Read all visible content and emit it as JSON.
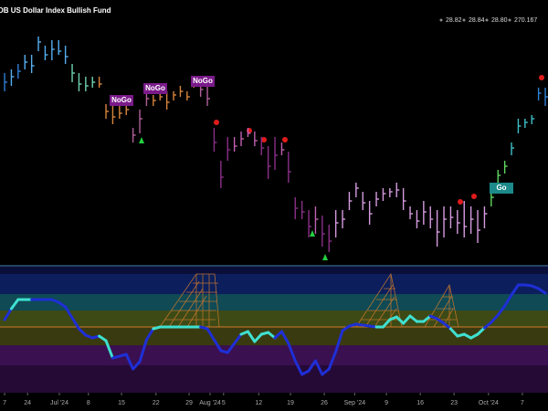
{
  "header": {
    "title": "DB US Dollar Index Bullish Fund",
    "quote": [
      "28.82",
      "28.84",
      "28.80",
      "270.167"
    ]
  },
  "chart_data": [
    {
      "type": "ohlc",
      "ylim": [
        27.55,
        29.0
      ],
      "xlim": [
        -0.68,
        80.4
      ],
      "annotations": [
        "NoGo",
        "NoGo",
        "NoGo",
        "Go"
      ],
      "high": [
        28.6,
        28.62,
        28.65,
        28.7,
        28.7,
        28.8,
        28.75,
        28.78,
        28.78,
        28.75,
        28.65,
        28.6,
        28.58,
        28.58,
        28.58,
        28.43,
        28.45,
        28.43,
        28.45,
        28.3,
        28.4,
        28.5,
        28.48,
        28.5,
        28.5,
        28.5,
        28.53,
        28.5,
        28.58,
        28.55,
        28.53,
        28.3,
        28.12,
        28.25,
        28.25,
        28.28,
        28.3,
        28.28,
        28.25,
        28.2,
        28.25,
        28.22,
        28.17,
        27.92,
        27.9,
        27.85,
        27.87,
        27.82,
        27.77,
        27.85,
        27.85,
        27.95,
        28.0,
        27.95,
        27.9,
        27.95,
        27.97,
        27.97,
        28.0,
        27.97,
        27.87,
        27.85,
        27.9,
        27.87,
        27.85,
        27.87,
        27.87,
        27.85,
        27.9,
        27.87,
        27.85,
        27.87,
        27.97,
        28.07,
        28.12,
        28.22,
        28.35,
        28.35,
        28.37,
        28.52,
        28.52
      ],
      "low": [
        28.5,
        28.53,
        28.57,
        28.62,
        28.6,
        28.72,
        28.67,
        28.67,
        28.7,
        28.65,
        28.55,
        28.5,
        28.5,
        28.52,
        28.52,
        28.35,
        28.32,
        28.35,
        28.37,
        28.22,
        28.27,
        28.42,
        28.42,
        28.45,
        28.4,
        28.45,
        28.47,
        28.45,
        28.52,
        28.47,
        28.42,
        28.17,
        27.97,
        28.12,
        28.17,
        28.2,
        28.25,
        28.2,
        28.15,
        28.02,
        28.07,
        28.15,
        28.0,
        27.8,
        27.8,
        27.7,
        27.72,
        27.65,
        27.62,
        27.7,
        27.75,
        27.85,
        27.92,
        27.85,
        27.77,
        27.87,
        27.9,
        27.92,
        27.92,
        27.85,
        27.8,
        27.75,
        27.77,
        27.75,
        27.65,
        27.7,
        27.75,
        27.72,
        27.7,
        27.72,
        27.67,
        27.75,
        27.87,
        28.0,
        28.05,
        28.15,
        28.27,
        28.3,
        28.32,
        28.45,
        28.42
      ],
      "close": [
        28.55,
        28.58,
        28.61,
        28.66,
        28.64,
        28.77,
        28.7,
        28.73,
        28.72,
        28.69,
        28.6,
        28.54,
        28.53,
        28.55,
        28.54,
        28.39,
        28.36,
        28.38,
        28.4,
        28.26,
        28.35,
        28.46,
        28.45,
        28.47,
        28.44,
        28.48,
        28.5,
        28.47,
        28.55,
        28.51,
        28.46,
        28.22,
        28.03,
        28.18,
        28.2,
        28.24,
        28.27,
        28.23,
        28.19,
        28.09,
        28.15,
        28.18,
        28.06,
        27.86,
        27.84,
        27.76,
        27.8,
        27.72,
        27.68,
        27.78,
        27.8,
        27.9,
        27.97,
        27.89,
        27.83,
        27.91,
        27.94,
        27.95,
        27.96,
        27.9,
        27.83,
        27.79,
        27.84,
        27.8,
        27.73,
        27.8,
        27.81,
        27.78,
        27.76,
        27.8,
        27.74,
        27.83,
        27.92,
        28.04,
        28.09,
        28.19,
        28.31,
        28.33,
        28.35,
        28.49,
        28.47
      ],
      "colors": [
        "#2f7fd6",
        "#55aef0",
        "#2f7fd6",
        "#55aef0",
        "#55aef0",
        "#55aef0",
        "#55aef0",
        "#55aef0",
        "#55aef0",
        "#55aef0",
        "#6fd3b0",
        "#6fd3b0",
        "#6fd3b0",
        "#6fd3b0",
        "#d8843c",
        "#d8843c",
        "#d8843c",
        "#d8843c",
        "#d8843c",
        "#b0609a",
        "#b0609a",
        "#b0609a",
        "#d8843c",
        "#d8843c",
        "#d8843c",
        "#d8843c",
        "#d8843c",
        "#d8843c",
        "#d8843c",
        "#b0609a",
        "#b0609a",
        "#8a2f88",
        "#8a2f88",
        "#8a2f88",
        "#c060b0",
        "#c060b0",
        "#c060b0",
        "#c060b0",
        "#8a2f88",
        "#8a2f88",
        "#8a2f88",
        "#c060b0",
        "#8a2f88",
        "#8a2f88",
        "#8a2f88",
        "#8a2f88",
        "#c060b0",
        "#8a2f88",
        "#8a2f88",
        "#d69be0",
        "#d69be0",
        "#d69be0",
        "#d69be0",
        "#d69be0",
        "#d69be0",
        "#d69be0",
        "#d69be0",
        "#d69be0",
        "#d69be0",
        "#d69be0",
        "#d69be0",
        "#d69be0",
        "#d69be0",
        "#d69be0",
        "#d69be0",
        "#d69be0",
        "#d69be0",
        "#d69be0",
        "#d69be0",
        "#d69be0",
        "#d69be0",
        "#d69be0",
        "#5fd860",
        "#5fd860",
        "#5fd860",
        "#3fc0c8",
        "#3fc0c8",
        "#3fc0c8",
        "#3fc0c8",
        "#2f7fd6",
        "#2f7fd6"
      ]
    },
    {
      "type": "oscillator",
      "ylim": [
        -7.2,
        6.6
      ],
      "xlim": [
        -0.68,
        80.4
      ],
      "values": [
        0.8,
        2.0,
        3.0,
        3.0,
        3.0,
        3.0,
        3.0,
        3.0,
        2.7,
        2.2,
        1.0,
        -0.2,
        -0.9,
        -1.2,
        -1.0,
        -1.5,
        -3.4,
        -3.2,
        -3.0,
        -4.6,
        -3.8,
        -1.4,
        -0.2,
        0,
        0,
        0,
        0,
        0,
        0,
        0,
        -0.2,
        -1.4,
        -2.6,
        -2.8,
        -1.8,
        -0.8,
        -0.5,
        -1.6,
        -0.8,
        -0.6,
        -1.2,
        -0.5,
        -1.8,
        -3.7,
        -5.2,
        -4.8,
        -3.7,
        -5.2,
        -4.6,
        -2.7,
        -0.4,
        0.1,
        0.3,
        0.2,
        0.1,
        0,
        0,
        0.8,
        1.1,
        0.4,
        1.2,
        0.6,
        0.6,
        1.2,
        0.9,
        0.4,
        -0.2,
        -1.0,
        -0.8,
        -1.2,
        -0.8,
        -0.1,
        0.5,
        1.3,
        2.3,
        3.5,
        4.6,
        4.6,
        4.5,
        4.2,
        3.7
      ],
      "colors": [
        "#1f2fd6",
        "#1f2fd6",
        "#3fe0d0",
        "#3fe0d0",
        "#3fe0d0",
        "#1f2fd6",
        "#1f2fd6",
        "#1f2fd6",
        "#1f2fd6",
        "#1f2fd6",
        "#1f2fd6",
        "#1f2fd6",
        "#1f2fd6",
        "#1f2fd6",
        "#1f2fd6",
        "#3fe0d0",
        "#3fe0d0",
        "#1f2fd6",
        "#1f2fd6",
        "#1f2fd6",
        "#1f2fd6",
        "#1f2fd6",
        "#1f2fd6",
        "#3fe0d0",
        "#3fe0d0",
        "#3fe0d0",
        "#3fe0d0",
        "#3fe0d0",
        "#3fe0d0",
        "#3fe0d0",
        "#1f2fd6",
        "#1f2fd6",
        "#1f2fd6",
        "#1f2fd6",
        "#1f2fd6",
        "#1f2fd6",
        "#3fe0d0",
        "#3fe0d0",
        "#3fe0d0",
        "#3fe0d0",
        "#3fe0d0",
        "#1f2fd6",
        "#1f2fd6",
        "#1f2fd6",
        "#1f2fd6",
        "#1f2fd6",
        "#1f2fd6",
        "#1f2fd6",
        "#1f2fd6",
        "#1f2fd6",
        "#1f2fd6",
        "#1f2fd6",
        "#1f2fd6",
        "#1f2fd6",
        "#1f2fd6",
        "#1f2fd6",
        "#3fe0d0",
        "#3fe0d0",
        "#3fe0d0",
        "#3fe0d0",
        "#3fe0d0",
        "#3fe0d0",
        "#3fe0d0",
        "#3fe0d0",
        "#1f2fd6",
        "#1f2fd6",
        "#1f2fd6",
        "#3fe0d0",
        "#3fe0d0",
        "#3fe0d0",
        "#3fe0d0",
        "#3fe0d0",
        "#1f2fd6",
        "#1f2fd6",
        "#1f2fd6",
        "#1f2fd6",
        "#1f2fd6",
        "#1f2fd6",
        "#1f2fd6",
        "#1f2fd6",
        "#1f2fd6"
      ],
      "xticks": [
        {
          "value": 0,
          "label": "7"
        },
        {
          "value": 3.4,
          "label": "24"
        },
        {
          "value": 8.1,
          "label": "Jul '24"
        },
        {
          "value": 12.4,
          "label": "8"
        },
        {
          "value": 17.3,
          "label": "15"
        },
        {
          "value": 22.4,
          "label": "22"
        },
        {
          "value": 27.3,
          "label": "29"
        },
        {
          "value": 30.4,
          "label": "Aug '24"
        },
        {
          "value": 32.4,
          "label": "5"
        },
        {
          "value": 37.6,
          "label": "12"
        },
        {
          "value": 42.3,
          "label": "19"
        },
        {
          "value": 47.3,
          "label": "26"
        },
        {
          "value": 51.8,
          "label": "Sep '24"
        },
        {
          "value": 56.5,
          "label": "9"
        },
        {
          "value": 61.5,
          "label": "16"
        },
        {
          "value": 66.5,
          "label": "23"
        },
        {
          "value": 71.6,
          "label": "Oct '24"
        },
        {
          "value": 76.6,
          "label": "7"
        }
      ]
    }
  ]
}
